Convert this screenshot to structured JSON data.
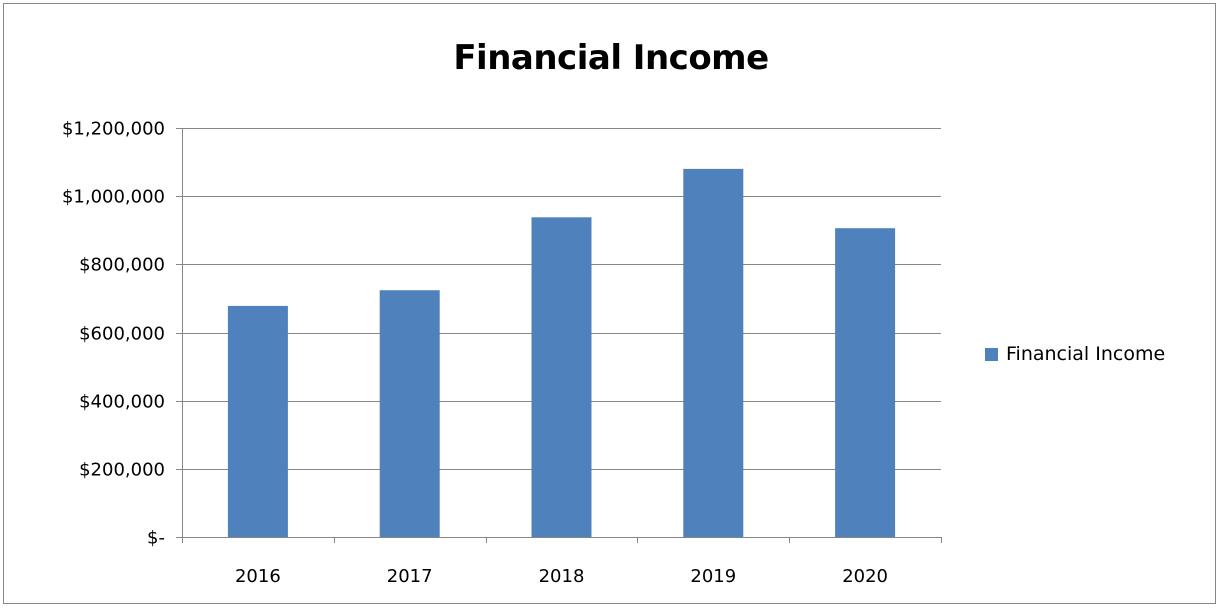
{
  "chart_data": {
    "type": "bar",
    "title": "Financial Income",
    "xlabel": "",
    "ylabel": "",
    "categories": [
      "2016",
      "2017",
      "2018",
      "2019",
      "2020"
    ],
    "series": [
      {
        "name": "Financial Income",
        "color": "#4F81BD",
        "values": [
          678000,
          724000,
          938000,
          1080000,
          906000
        ]
      }
    ],
    "ylim": [
      0,
      1200000
    ],
    "yticks": [
      0,
      200000,
      400000,
      600000,
      800000,
      1000000,
      1200000
    ],
    "ytick_labels": [
      "$-",
      "$200,000",
      "$400,000",
      "$600,000",
      "$800,000",
      "$1,000,000",
      "$1,200,000"
    ],
    "grid": true,
    "legend_position": "right"
  }
}
